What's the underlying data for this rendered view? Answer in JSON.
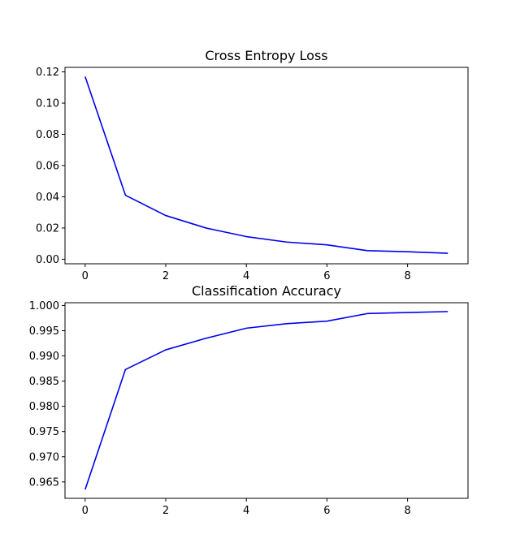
{
  "colors": {
    "line": "#0000ee",
    "axes": "#000000",
    "background": "#ffffff"
  },
  "chart_data": [
    {
      "type": "line",
      "title": "Cross Entropy Loss",
      "xlabel": "",
      "ylabel": "",
      "x": [
        0,
        1,
        2,
        3,
        4,
        5,
        6,
        7,
        8,
        9
      ],
      "series": [
        {
          "values": [
            0.117,
            0.041,
            0.028,
            0.02,
            0.0145,
            0.011,
            0.0092,
            0.0055,
            0.0048,
            0.0038
          ]
        }
      ],
      "xlim": [
        -0.5,
        9.5
      ],
      "ylim": [
        -0.0029,
        0.1229
      ],
      "xticks": [
        "0",
        "2",
        "4",
        "6",
        "8"
      ],
      "yticks": [
        "0.00",
        "0.02",
        "0.04",
        "0.06",
        "0.08",
        "0.10",
        "0.12"
      ],
      "grid": false,
      "legend": "none"
    },
    {
      "type": "line",
      "title": "Classification Accuracy",
      "xlabel": "",
      "ylabel": "",
      "x": [
        0,
        1,
        2,
        3,
        4,
        5,
        6,
        7,
        8,
        9
      ],
      "series": [
        {
          "values": [
            0.9635,
            0.9873,
            0.9912,
            0.9935,
            0.9955,
            0.9964,
            0.9969,
            0.9984,
            0.9986,
            0.9988
          ]
        }
      ],
      "xlim": [
        -0.5,
        9.5
      ],
      "ylim": [
        0.96175,
        1.00055
      ],
      "xticks": [
        "0",
        "2",
        "4",
        "6",
        "8"
      ],
      "yticks": [
        "0.965",
        "0.970",
        "0.975",
        "0.980",
        "0.985",
        "0.990",
        "0.995",
        "1.000"
      ],
      "grid": false,
      "legend": "none"
    }
  ]
}
